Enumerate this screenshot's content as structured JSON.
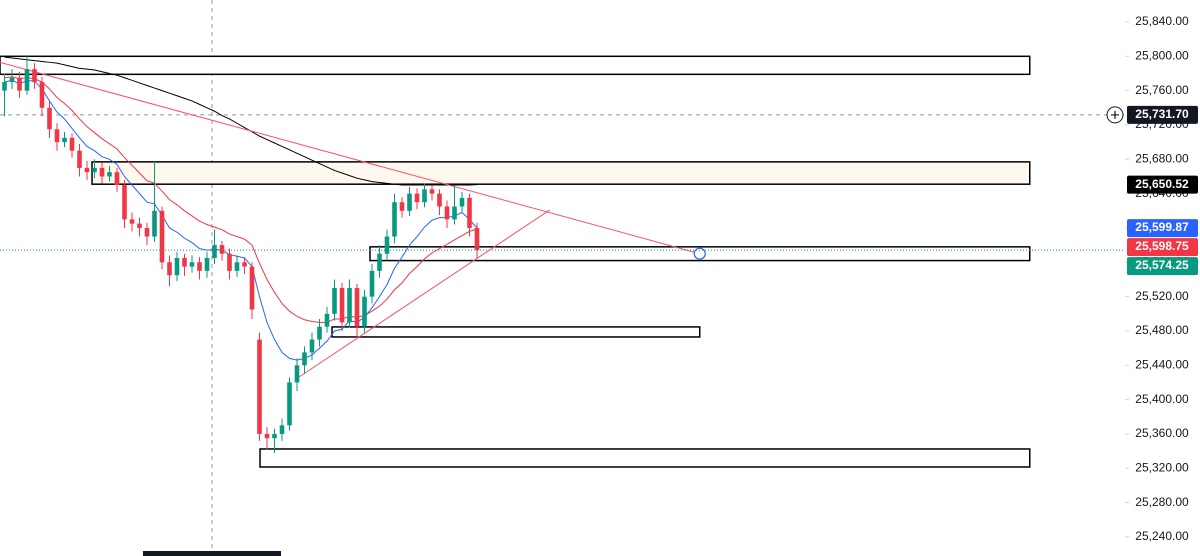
{
  "chart_data": {
    "type": "candlestick",
    "ylim": [
      25217.8,
      25865.6
    ],
    "xlim": [
      -0.6,
      149.4
    ],
    "yticks": [
      {
        "value": 25840,
        "label": "25,840.00"
      },
      {
        "value": 25800,
        "label": "25,800.00"
      },
      {
        "value": 25760,
        "label": "25,760.00"
      },
      {
        "value": 25720,
        "label": "25,720.00"
      },
      {
        "value": 25680,
        "label": "25,680.00"
      },
      {
        "value": 25640,
        "label": "25,640.00"
      },
      {
        "value": 25600,
        "label": "25,600.00"
      },
      {
        "value": 25560,
        "label": "25,560.00"
      },
      {
        "value": 25520,
        "label": "25,520.00"
      },
      {
        "value": 25480,
        "label": "25,480.00"
      },
      {
        "value": 25440,
        "label": "25,440.00"
      },
      {
        "value": 25400,
        "label": "25,400.00"
      },
      {
        "value": 25360,
        "label": "25,360.00"
      },
      {
        "value": 25320,
        "label": "25,320.00"
      },
      {
        "value": 25280,
        "label": "25,280.00"
      },
      {
        "value": 25240,
        "label": "25,240.00"
      }
    ],
    "up_color": "#089981",
    "down_color": "#f23645",
    "ohlc": {
      "open": [
        25760,
        25770,
        25775,
        25760,
        25785,
        25770,
        25740,
        25715,
        25700,
        25705,
        25690,
        25670,
        25665,
        25670,
        25660,
        25665,
        25650,
        25610,
        25605,
        25600,
        25590,
        25620,
        25560,
        25545,
        25565,
        25555,
        25560,
        25550,
        25565,
        25580,
        25570,
        25550,
        25560,
        25555,
        25470,
        25360,
        25355,
        25360,
        25370,
        25420,
        25440,
        25455,
        25470,
        25485,
        25500,
        25530,
        25490,
        25530,
        25485,
        25520,
        25550,
        25570,
        25590,
        25630,
        25620,
        25640,
        25630,
        25645,
        25640,
        25625,
        25610,
        25625,
        25635,
        25600
      ],
      "high": [
        25780,
        25785,
        25782,
        25800,
        25792,
        25776,
        25748,
        25722,
        25712,
        25710,
        25698,
        25678,
        25680,
        25676,
        25672,
        25670,
        25656,
        25618,
        25612,
        25606,
        25678,
        25625,
        25568,
        25572,
        25570,
        25568,
        25566,
        25572,
        25598,
        25585,
        25576,
        25568,
        25566,
        25560,
        25478,
        25368,
        25366,
        25378,
        25426,
        25448,
        25462,
        25478,
        25494,
        25508,
        25540,
        25536,
        25540,
        25535,
        25528,
        25558,
        25580,
        25598,
        25640,
        25636,
        25648,
        25646,
        25652,
        25650,
        25645,
        25632,
        25650,
        25642,
        25640,
        25606
      ],
      "low": [
        25730,
        25762,
        25752,
        25755,
        25762,
        25730,
        25705,
        25690,
        25694,
        25682,
        25660,
        25656,
        25658,
        25652,
        25654,
        25642,
        25600,
        25596,
        25590,
        25580,
        25584,
        25552,
        25532,
        25538,
        25544,
        25548,
        25540,
        25542,
        25558,
        25562,
        25540,
        25543,
        25546,
        25494,
        25352,
        25342,
        25338,
        25352,
        25364,
        25410,
        25430,
        25446,
        25462,
        25478,
        25492,
        25480,
        25484,
        25472,
        25478,
        25512,
        25542,
        25562,
        25582,
        25612,
        25614,
        25622,
        25624,
        25632,
        25615,
        25600,
        25604,
        25618,
        25590,
        25565
      ],
      "close": [
        25770,
        25775,
        25760,
        25785,
        25770,
        25740,
        25715,
        25700,
        25705,
        25690,
        25670,
        25665,
        25670,
        25660,
        25665,
        25650,
        25610,
        25605,
        25600,
        25590,
        25620,
        25560,
        25545,
        25565,
        25555,
        25560,
        25550,
        25565,
        25580,
        25570,
        25550,
        25560,
        25555,
        25505,
        25360,
        25355,
        25360,
        25370,
        25420,
        25440,
        25455,
        25470,
        25485,
        25500,
        25530,
        25490,
        25530,
        25485,
        25520,
        25550,
        25570,
        25590,
        25630,
        25620,
        25640,
        25630,
        25645,
        25640,
        25625,
        25610,
        25625,
        25635,
        25600,
        25574.25
      ]
    },
    "moving_averages": [
      {
        "color": "#000000",
        "values": [
          25799,
          25798,
          25797,
          25796,
          25795,
          25794,
          25793,
          25792,
          25790,
          25788,
          25786,
          25785,
          25784,
          25782,
          25780,
          25778,
          25775,
          25772,
          25769,
          25766,
          25763,
          25760,
          25757,
          25754,
          25751,
          25748,
          25744,
          25740,
          25736,
          25731,
          25727,
          25722,
          25717,
          25712,
          25707,
          25703,
          25699,
          25695,
          25691,
          25687,
          25683,
          25679,
          25675,
          25671,
          25667,
          25664,
          25661,
          25658,
          25656,
          25654,
          25653,
          25652,
          25651,
          25650,
          25650,
          25650,
          25650,
          25650,
          25650,
          25650,
          25650,
          25650,
          25650,
          25650.52
        ]
      },
      {
        "color": "#f23645",
        "values": [
          25775,
          25776,
          25774,
          25775,
          25774,
          25770,
          25762,
          25752,
          25745,
          25737,
          25727,
          25718,
          25711,
          25704,
          25698,
          25692,
          25682,
          25673,
          25664,
          25655,
          25652,
          25643,
          25633,
          25627,
          25620,
          25614,
          25608,
          25604,
          25601,
          25598,
          25593,
          25590,
          25587,
          25580,
          25559,
          25540,
          25525,
          25512,
          25503,
          25497,
          25493,
          25491,
          25490,
          25490,
          25494,
          25494,
          25497,
          25496,
          25498,
          25503,
          25509,
          25517,
          25528,
          25536,
          25547,
          25555,
          25564,
          25571,
          25576,
          25581,
          25586,
          25591,
          25596,
          25598.75
        ]
      },
      {
        "color": "#2962ff",
        "values": [
          25770,
          25772,
          25768,
          25772,
          25771,
          25762,
          25748,
          25735,
          25727,
          25716,
          25705,
          25695,
          25690,
          25683,
          25680,
          25674,
          25660,
          25650,
          25640,
          25630,
          25628,
          25615,
          25600,
          25595,
          25588,
          25583,
          25576,
          25574,
          25575,
          25574,
          25569,
          25567,
          25565,
          25555,
          25520,
          25490,
          25470,
          25455,
          25448,
          25446,
          25448,
          25452,
          25460,
          25468,
          25480,
          25482,
          25492,
          25490,
          25496,
          25507,
          25520,
          25534,
          25553,
          25566,
          25580,
          25590,
          25601,
          25609,
          25612,
          25612,
          25614,
          25618,
          25610,
          25599.87
        ]
      }
    ],
    "zones": [
      {
        "start": -0.6,
        "end": 136.7,
        "top": 25800,
        "bottom": 25779,
        "fill": "#ffffff"
      },
      {
        "start": 11.67,
        "end": 136.7,
        "top": 25677,
        "bottom": 25651,
        "fill": "#fff8ef"
      },
      {
        "start": 48.73,
        "end": 136.7,
        "top": 25578,
        "bottom": 25562,
        "fill": "#ffffff"
      },
      {
        "start": 43.67,
        "end": 92.7,
        "top": 25484.7,
        "bottom": 25473,
        "fill": "#ffffff"
      },
      {
        "start": 34.07,
        "end": 136.7,
        "top": 25342.5,
        "bottom": 25321.5,
        "fill": "#ffffff"
      }
    ],
    "trendlines": [
      {
        "start": -0.6,
        "end": 92.7,
        "from": 25793,
        "to": 25570,
        "color": "#f7525f",
        "end_marker": true
      },
      {
        "start": 38.7,
        "end": 72.7,
        "from": 25423,
        "to": 25621,
        "color": "#f7525f",
        "end_marker": false
      }
    ],
    "crosshair_price": 25731.7,
    "price_labels": [
      {
        "value": 25731.7,
        "label": "25,731.70",
        "color": "#131722"
      },
      {
        "value": 25650.52,
        "label": "25,650.52",
        "color": "#000000"
      },
      {
        "value": 25599.87,
        "label": "25,599.87",
        "color": "#2962ff"
      },
      {
        "value": 25598.75,
        "label": "25,598.75",
        "color": "#f23645"
      },
      {
        "value": 25574.25,
        "label": "25,574.25",
        "color": "#089981"
      }
    ]
  }
}
